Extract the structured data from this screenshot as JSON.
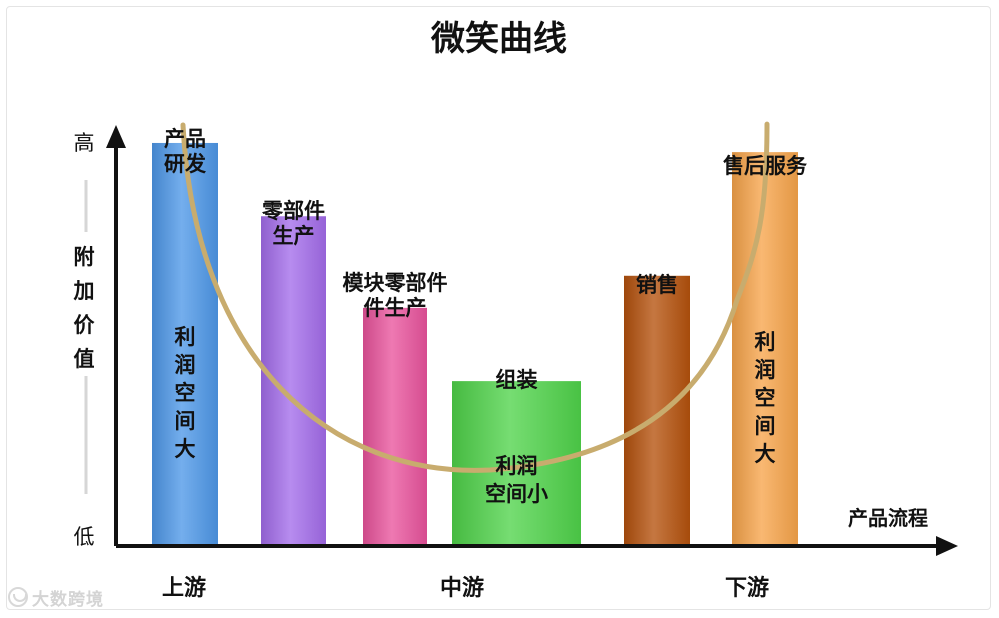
{
  "chart_data": {
    "type": "bar",
    "title": "微笑曲线",
    "ylabel": "附加价值",
    "xlabel": "产品流程",
    "y_high_label": "高",
    "y_low_label": "低",
    "ylim": [
      0,
      100
    ],
    "categories": [
      "产品研发",
      "零部件生产",
      "模块零部件生产",
      "组装",
      "销售",
      "售后服务"
    ],
    "category_label_lines": [
      [
        "产品",
        "研发"
      ],
      [
        "零部件",
        "生产"
      ],
      [
        "模块零部件",
        "件生产"
      ],
      [
        "组装"
      ],
      [
        "销售"
      ],
      [
        "售后服务"
      ]
    ],
    "values": [
      88,
      72,
      52,
      36,
      59,
      86
    ],
    "colors": [
      "#4d97e8",
      "#a36cea",
      "#e9539c",
      "#4fd34a",
      "#b4510c",
      "#f7a44a"
    ],
    "in_bar_labels": [
      {
        "bar": 0,
        "lines": [
          "利",
          "润",
          "空",
          "间",
          "大"
        ]
      },
      {
        "bar": 3,
        "lines": [
          "利润",
          "空间小"
        ]
      },
      {
        "bar": 5,
        "lines": [
          "利",
          "润",
          "空",
          "间",
          "大"
        ]
      }
    ],
    "curve": {
      "color": "#c8ac6e",
      "shape": "smile"
    },
    "stage_labels": [
      "上游",
      "中游",
      "下游"
    ],
    "grid": false,
    "legend": "none"
  },
  "watermark": {
    "text": "大数跨境"
  }
}
